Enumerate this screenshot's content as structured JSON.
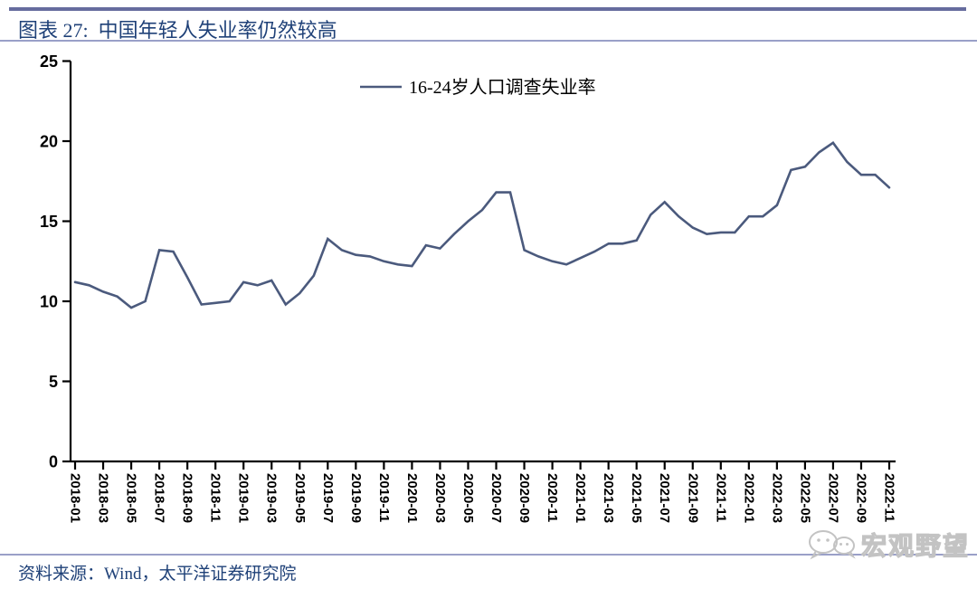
{
  "header": {
    "title": "图表 27:  中国年轻人失业率仍然较高"
  },
  "footer": {
    "source": "资料来源：Wind，太平洋证券研究院"
  },
  "watermark": {
    "text": "宏观野望",
    "icon": "wechat-icon"
  },
  "colors": {
    "line": "#4b5a7d",
    "axis": "#000000",
    "top_rule": "#666c9e",
    "thin_rule": "#9aa0c8",
    "title_text": "#1f4178",
    "watermark_gray": "#c3c3c3"
  },
  "chart_data": {
    "type": "line",
    "title": "图表 27: 中国年轻人失业率仍然较高",
    "legend": [
      "16-24岁人口调查失业率"
    ],
    "legend_position": "top-center-inside",
    "grid": false,
    "ylim": [
      0,
      25
    ],
    "yticks": [
      0,
      5,
      10,
      15,
      20,
      25
    ],
    "xtick_label_step": 2,
    "x": [
      "2018-01",
      "2018-02",
      "2018-03",
      "2018-04",
      "2018-05",
      "2018-06",
      "2018-07",
      "2018-08",
      "2018-09",
      "2018-10",
      "2018-11",
      "2018-12",
      "2019-01",
      "2019-02",
      "2019-03",
      "2019-04",
      "2019-05",
      "2019-06",
      "2019-07",
      "2019-08",
      "2019-09",
      "2019-10",
      "2019-11",
      "2019-12",
      "2020-01",
      "2020-02",
      "2020-03",
      "2020-04",
      "2020-05",
      "2020-06",
      "2020-07",
      "2020-08",
      "2020-09",
      "2020-10",
      "2020-11",
      "2020-12",
      "2021-01",
      "2021-02",
      "2021-03",
      "2021-04",
      "2021-05",
      "2021-06",
      "2021-07",
      "2021-08",
      "2021-09",
      "2021-10",
      "2021-11",
      "2021-12",
      "2022-01",
      "2022-02",
      "2022-03",
      "2022-04",
      "2022-05",
      "2022-06",
      "2022-07",
      "2022-08",
      "2022-09",
      "2022-10",
      "2022-11"
    ],
    "series": [
      {
        "name": "16-24岁人口调查失业率",
        "values": [
          11.2,
          11.0,
          10.6,
          10.3,
          9.6,
          10.0,
          13.2,
          13.1,
          11.5,
          9.8,
          9.9,
          10.0,
          11.2,
          11.0,
          11.3,
          9.8,
          10.5,
          11.6,
          13.9,
          13.2,
          12.9,
          12.8,
          12.5,
          12.3,
          12.2,
          13.5,
          13.3,
          14.2,
          15.0,
          15.7,
          16.8,
          16.8,
          13.2,
          12.8,
          12.5,
          12.3,
          12.7,
          13.1,
          13.6,
          13.6,
          13.8,
          15.4,
          16.2,
          15.3,
          14.6,
          14.2,
          14.3,
          14.3,
          15.3,
          15.3,
          16.0,
          18.2,
          18.4,
          19.3,
          19.9,
          18.7,
          17.9,
          17.9,
          17.1
        ]
      }
    ]
  }
}
